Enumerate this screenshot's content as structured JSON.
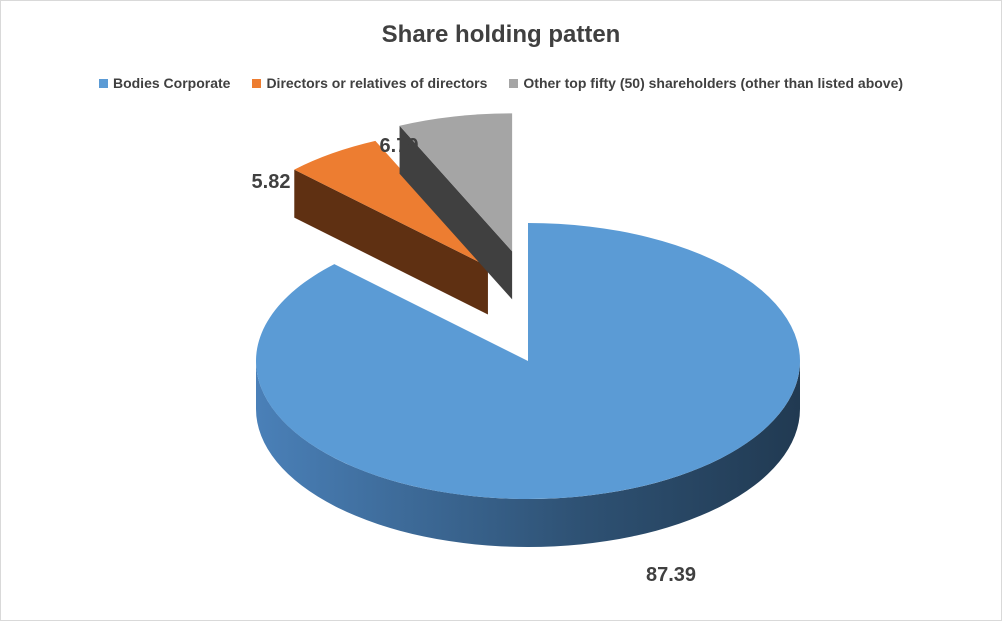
{
  "chart_data": {
    "type": "pie",
    "style": "3d-exploded",
    "title": "Share holding patten",
    "legend_position": "top",
    "series": [
      {
        "name": "Bodies Corporate",
        "value": 87.39,
        "color": "#5B9BD5",
        "label": "87.39"
      },
      {
        "name": "Directors or relatives of directors",
        "value": 5.82,
        "color": "#ED7D31",
        "label": "5.82"
      },
      {
        "name": "Other top fifty (50) shareholders (other than listed above)",
        "value": 6.79,
        "color": "#A5A5A5",
        "label": "6.79"
      }
    ]
  }
}
